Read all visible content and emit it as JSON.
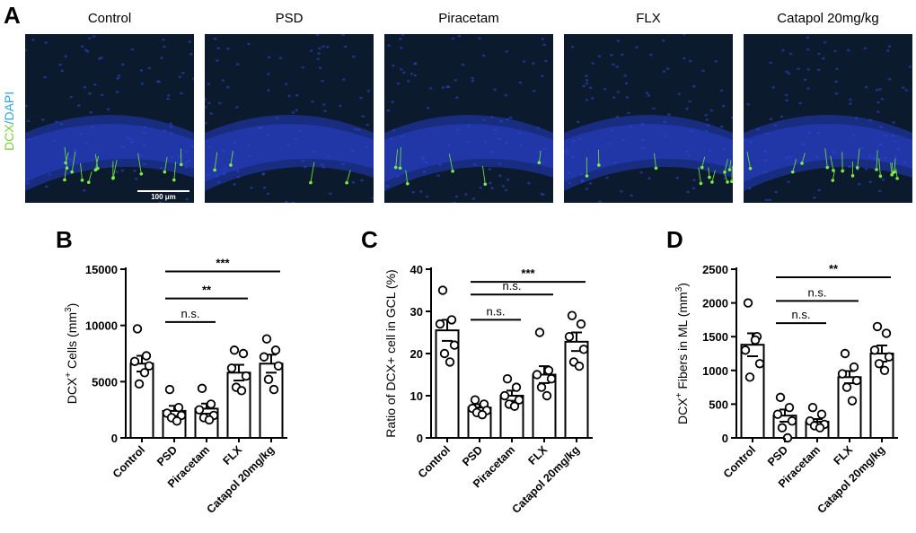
{
  "figure": {
    "panel_a": {
      "letter": "A",
      "stain_label_dcx": "DCX",
      "stain_label_sep": "/",
      "stain_label_dapi": "DAPI",
      "scale_bar_label": "100 μm",
      "images": [
        {
          "title": "Control"
        },
        {
          "title": "PSD"
        },
        {
          "title": "Piracetam"
        },
        {
          "title": "FLX"
        },
        {
          "title": "Catapol 20mg/kg"
        }
      ]
    }
  },
  "chart_data": [
    {
      "panel": "B",
      "type": "bar",
      "categories": [
        "Control",
        "PSD",
        "Piracetam",
        "FLX",
        "Catapol 20mg/kg"
      ],
      "values": [
        6600,
        2400,
        2600,
        5800,
        6600
      ],
      "errors": [
        700,
        450,
        450,
        700,
        800
      ],
      "points": [
        [
          9700,
          7300,
          6800,
          6400,
          4800,
          5800
        ],
        [
          4300,
          2700,
          2200,
          2000,
          1800,
          1500
        ],
        [
          4400,
          3000,
          2500,
          2000,
          1800,
          1600
        ],
        [
          7800,
          7500,
          6200,
          5500,
          4500,
          4200
        ],
        [
          8800,
          7800,
          7200,
          6400,
          5200,
          4300
        ]
      ],
      "ylabel_main": "DCX",
      "ylabel_sup": "+",
      "ylabel_rest": " Cells (mm",
      "ylabel_unit_sup": "3",
      "ylabel_end": ")",
      "ylim": [
        0,
        15000
      ],
      "yticks": [
        "0",
        "5000",
        "10000",
        "15000"
      ],
      "comparisons": [
        {
          "from": 1,
          "to": 2,
          "label": "n.s.",
          "y": 10300
        },
        {
          "from": 1,
          "to": 3,
          "label": "**",
          "y": 12400
        },
        {
          "from": 1,
          "to": 4,
          "label": "***",
          "y": 14800
        }
      ]
    },
    {
      "panel": "C",
      "type": "bar",
      "categories": [
        "Control",
        "PSD",
        "Piracetam",
        "FLX",
        "Catapol 20mg/kg"
      ],
      "values": [
        25.5,
        7.2,
        10.0,
        15.0,
        22.8
      ],
      "errors": [
        2.5,
        0.8,
        1.2,
        2.0,
        2.2
      ],
      "points": [
        [
          35,
          28,
          27,
          22,
          20,
          18
        ],
        [
          9,
          8,
          7,
          6.5,
          6,
          5.5
        ],
        [
          14,
          12,
          10,
          9,
          8,
          7.5
        ],
        [
          25,
          16,
          15,
          14,
          12,
          10
        ],
        [
          29,
          27,
          24,
          21,
          18,
          17
        ]
      ],
      "ylabel_main": "Ratio of DCX+ cell in GCL (%)",
      "ylim": [
        0,
        40
      ],
      "yticks": [
        "0",
        "10",
        "20",
        "30",
        "40"
      ],
      "comparisons": [
        {
          "from": 1,
          "to": 2,
          "label": "n.s.",
          "y": 28
        },
        {
          "from": 1,
          "to": 3,
          "label": "n.s.",
          "y": 34
        },
        {
          "from": 1,
          "to": 4,
          "label": "***",
          "y": 37
        }
      ]
    },
    {
      "panel": "D",
      "type": "bar",
      "categories": [
        "Control",
        "PSD",
        "Piracetam",
        "FLX",
        "Catapol 20mg/kg"
      ],
      "values": [
        1380,
        330,
        240,
        900,
        1250
      ],
      "errors": [
        170,
        90,
        40,
        90,
        120
      ],
      "points": [
        [
          2000,
          1500,
          1300,
          1100,
          900,
          1450
        ],
        [
          600,
          450,
          350,
          250,
          150,
          0
        ],
        [
          450,
          350,
          250,
          200,
          180,
          150
        ],
        [
          1250,
          1050,
          950,
          850,
          750,
          550
        ],
        [
          1650,
          1550,
          1300,
          1200,
          1100,
          1000
        ]
      ],
      "ylabel_main": "DCX",
      "ylabel_sup": "+",
      "ylabel_rest": " Fibers in ML (mm",
      "ylabel_unit_sup": "3",
      "ylabel_end": ")",
      "ylim": [
        0,
        2500
      ],
      "yticks": [
        "0",
        "500",
        "1000",
        "1500",
        "2000",
        "2500"
      ],
      "comparisons": [
        {
          "from": 1,
          "to": 2,
          "label": "n.s.",
          "y": 1700
        },
        {
          "from": 1,
          "to": 3,
          "label": "n.s.",
          "y": 2030
        },
        {
          "from": 1,
          "to": 4,
          "label": "**",
          "y": 2380
        }
      ]
    }
  ]
}
